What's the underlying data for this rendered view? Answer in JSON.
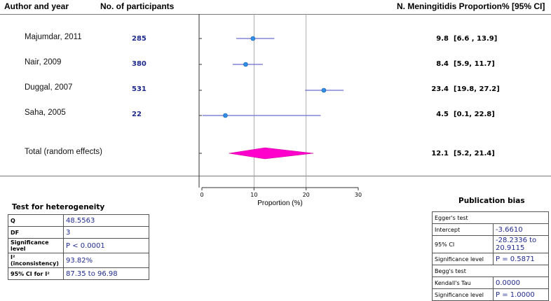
{
  "headers": {
    "author": "Author and year",
    "participants": "No. of participants",
    "proportion": "N. Meningitidis Proportion% [95% CI]"
  },
  "chart_data": {
    "type": "forest",
    "xlabel": "Proportion (%)",
    "xlim": [
      0,
      30
    ],
    "xticks": [
      0,
      10,
      20,
      30
    ],
    "gridlines": [
      10,
      20
    ],
    "studies": [
      {
        "name": "Majumdar, 2011",
        "n": "285",
        "estimate": 9.8,
        "ci_low": 6.6,
        "ci_high": 13.9,
        "est_label": "9.8",
        "ci_label": "[6.6 , 13.9]"
      },
      {
        "name": "Nair, 2009",
        "n": "380",
        "estimate": 8.4,
        "ci_low": 5.9,
        "ci_high": 11.7,
        "est_label": "8.4",
        "ci_label": "[5.9, 11.7]"
      },
      {
        "name": "Duggal, 2007",
        "n": "531",
        "estimate": 23.4,
        "ci_low": 19.8,
        "ci_high": 27.2,
        "est_label": "23.4",
        "ci_label": "[19.8, 27.2]"
      },
      {
        "name": "Saha, 2005",
        "n": "22",
        "estimate": 4.5,
        "ci_low": 0.1,
        "ci_high": 22.8,
        "est_label": "4.5",
        "ci_label": "[0.1, 22.8]"
      }
    ],
    "pooled": {
      "name": "Total (random effects)",
      "estimate": 12.1,
      "ci_low": 5.2,
      "ci_high": 21.4,
      "est_label": "12.1",
      "ci_label": "[5.2, 21.4]"
    },
    "colors": {
      "point": "#2f8fe6",
      "ci": "#6c6ccc",
      "diamond": "#ff00cc",
      "axis": "#333333",
      "grid": "#999999"
    }
  },
  "heterogeneity": {
    "title": "Test for heterogeneity",
    "rows": [
      {
        "label": "Q",
        "value": "48.5563"
      },
      {
        "label": "DF",
        "value": "3"
      },
      {
        "label": "Significance level",
        "value": "P < 0.0001"
      },
      {
        "label": "I² (inconsistency)",
        "value": "93.82%"
      },
      {
        "label": "95% CI for I²",
        "value": "87.35 to 96.98"
      }
    ]
  },
  "publication_bias": {
    "title": "Publication bias",
    "egger_title": "Egger's test",
    "egger_rows": [
      {
        "label": "Intercept",
        "value": "-3.6610"
      },
      {
        "label": "95% CI",
        "value": "-28.2336 to 20.9115"
      },
      {
        "label": "Significance level",
        "value": "P = 0.5871"
      }
    ],
    "begg_title": "Begg's test",
    "begg_rows": [
      {
        "label": "Kendall's Tau",
        "value": "0.0000"
      },
      {
        "label": "Significance level",
        "value": "P = 1.0000"
      }
    ]
  }
}
